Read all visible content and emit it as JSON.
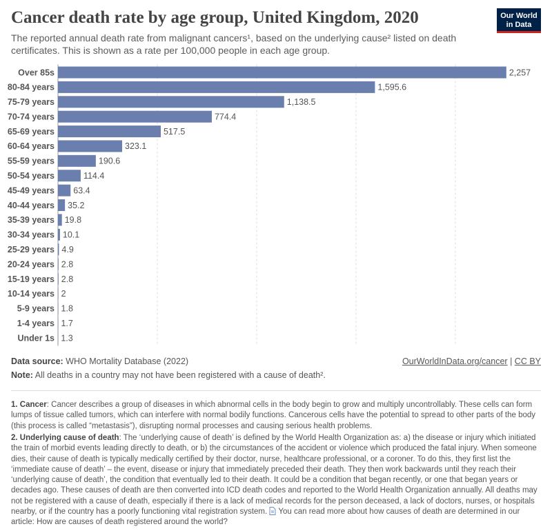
{
  "chart_data": {
    "type": "bar",
    "orientation": "horizontal",
    "title": "Cancer death rate by age group, United Kingdom, 2020",
    "subtitle": "The reported annual death rate from malignant cancers¹, based on the underlying cause² listed on death certificates. This is shown as a rate per 100,000 people in each age group.",
    "categories": [
      "Over 85s",
      "80-84 years",
      "75-79 years",
      "70-74 years",
      "65-69 years",
      "60-64 years",
      "55-59 years",
      "50-54 years",
      "45-49 years",
      "40-44 years",
      "35-39 years",
      "30-34 years",
      "25-29 years",
      "20-24 years",
      "15-19 years",
      "10-14 years",
      "5-9 years",
      "1-4 years",
      "Under 1s"
    ],
    "values": [
      2257,
      1595.6,
      1138.5,
      774.4,
      517.5,
      323.1,
      190.6,
      114.4,
      63.4,
      35.2,
      19.8,
      10.1,
      4.9,
      2.8,
      2.8,
      2,
      1.8,
      1.7,
      1.3
    ],
    "value_labels": [
      "2,257",
      "1,595.6",
      "1,138.5",
      "774.4",
      "517.5",
      "323.1",
      "190.6",
      "114.4",
      "63.4",
      "35.2",
      "19.8",
      "10.1",
      "4.9",
      "2.8",
      "2.8",
      "2",
      "1.8",
      "1.7",
      "1.3"
    ],
    "color": "#6b7fae",
    "xlim": [
      0,
      2400
    ],
    "xticks": [
      0,
      500,
      1000,
      1500,
      2000
    ],
    "grid": true
  },
  "logo": {
    "line1": "Our World",
    "line2": "in Data"
  },
  "footer": {
    "source_label": "Data source:",
    "source": "WHO Mortality Database (2022)",
    "link": "OurWorldInData.org/cancer",
    "separator": "|",
    "license": "CC BY",
    "note_label": "Note:",
    "note": "All deaths in a country may not have been registered with a cause of death²."
  },
  "footnotes": [
    {
      "label": "1. Cancer",
      "text": ": Cancer describes a group of diseases in which abnormal cells in the body begin to grow and multiply uncontrollably. These cells can form lumps of tissue called tumors, which can interfere with normal bodily functions. Cancerous cells have the potential to spread to other parts of the body (this process is called “metastasis”), disrupting normal processes and causing serious health problems."
    },
    {
      "label": "2. Underlying cause of death",
      "text": ": The ‘underlying cause of death’ is defined by the World Health Organization as: a) the disease or injury which initiated the train of morbid events leading directly to death, or b) the circumstances of the accident or violence which produced the fatal injury. When someone dies, their cause of death is typically medically certified by their doctor, nurse, healthcare professional, or a coroner. To do this, they first list the ‘immediate cause of death’ – the event, disease or injury that immediately preceded their death. They then work backwards until they reach their ‘underlying cause of death’, the condition that eventually led to their death. It could be a condition that began recently, or one that began years or decades ago. These causes of death are then converted into ICD death codes and reported to the World Health Organization annually. All deaths may not be registered with a cause of death, especially if there is a lack of medical records for the person deceased, a lack of doctors, nurses, or hospitals nearby, or if the country has a poorly functioning vital registration system.",
      "more": "You can read more about how causes of death are determined in our article: How are causes of death registered around the world?"
    }
  ]
}
